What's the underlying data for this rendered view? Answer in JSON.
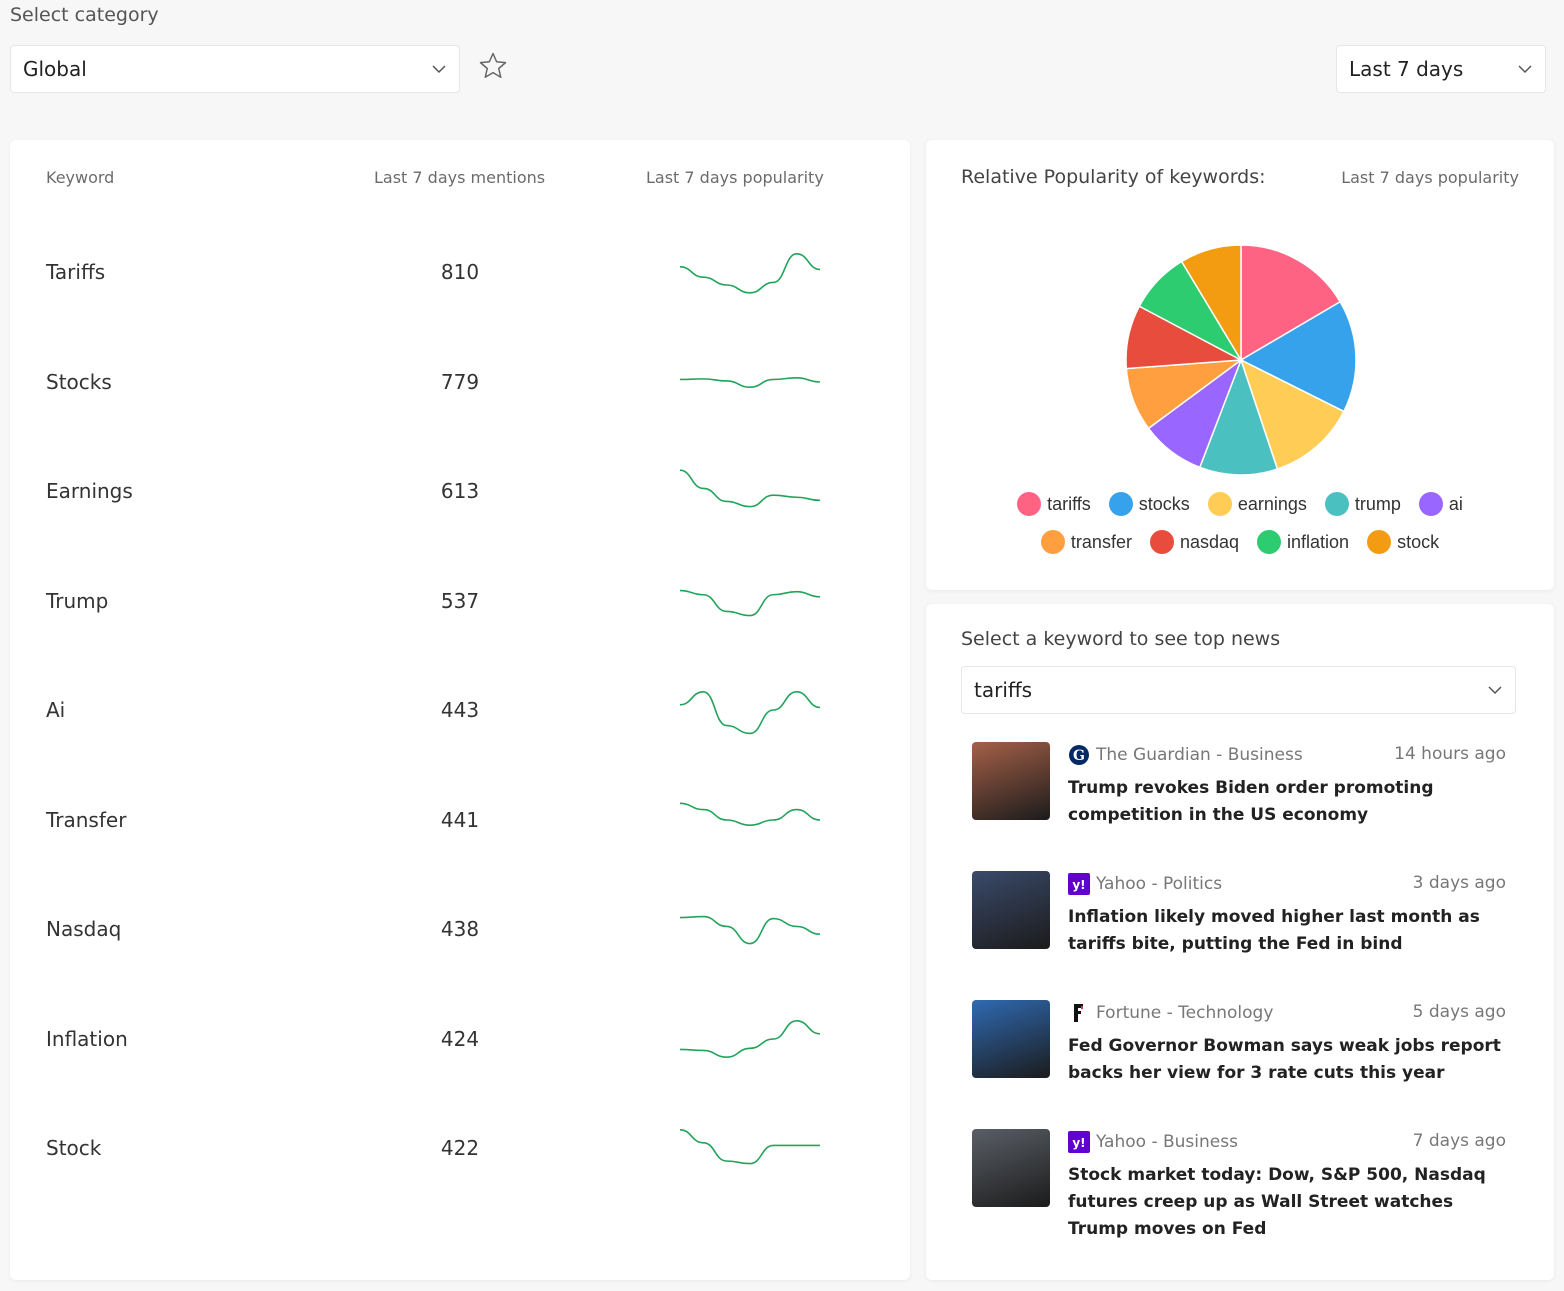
{
  "filters": {
    "category_label": "Select category",
    "category_value": "Global",
    "period_value": "Last 7 days"
  },
  "table": {
    "headers": {
      "keyword": "Keyword",
      "mentions": "Last 7 days mentions",
      "popularity": "Last 7 days popularity"
    },
    "rows": [
      {
        "keyword": "Tariffs",
        "mentions": "810",
        "trend": [
          0.6,
          0.4,
          0.25,
          0.1,
          0.3,
          0.85,
          0.55
        ]
      },
      {
        "keyword": "Stocks",
        "mentions": "779",
        "trend": [
          0.55,
          0.56,
          0.52,
          0.4,
          0.55,
          0.58,
          0.5
        ]
      },
      {
        "keyword": "Earnings",
        "mentions": "613",
        "trend": [
          0.9,
          0.55,
          0.3,
          0.2,
          0.42,
          0.38,
          0.32
        ]
      },
      {
        "keyword": "Trump",
        "mentions": "537",
        "trend": [
          0.7,
          0.62,
          0.3,
          0.22,
          0.62,
          0.68,
          0.58
        ]
      },
      {
        "keyword": "Ai",
        "mentions": "443",
        "trend": [
          0.6,
          0.85,
          0.2,
          0.05,
          0.5,
          0.85,
          0.55
        ]
      },
      {
        "keyword": "Transfer",
        "mentions": "441",
        "trend": [
          0.82,
          0.7,
          0.5,
          0.4,
          0.5,
          0.7,
          0.5
        ]
      },
      {
        "keyword": "Nasdaq",
        "mentions": "438",
        "trend": [
          0.72,
          0.74,
          0.55,
          0.22,
          0.7,
          0.55,
          0.4
        ]
      },
      {
        "keyword": "Inflation",
        "mentions": "424",
        "trend": [
          0.3,
          0.28,
          0.15,
          0.32,
          0.5,
          0.85,
          0.6
        ]
      },
      {
        "keyword": "Stock",
        "mentions": "422",
        "trend": [
          0.85,
          0.6,
          0.25,
          0.2,
          0.55,
          0.55,
          0.55
        ]
      }
    ]
  },
  "pie": {
    "title": "Relative Popularity of keywords:",
    "subtitle": "Last 7 days popularity"
  },
  "chart_data": {
    "type": "pie",
    "title": "Relative Popularity of keywords:",
    "categories": [
      "tariffs",
      "stocks",
      "earnings",
      "trump",
      "ai",
      "transfer",
      "nasdaq",
      "inflation",
      "stock"
    ],
    "values": [
      16.3,
      15.6,
      12.3,
      10.8,
      8.9,
      8.8,
      8.8,
      8.5,
      8.5
    ],
    "colors": [
      "#ff6384",
      "#36a2eb",
      "#ffcd56",
      "#4bc0c0",
      "#9966ff",
      "#ff9f40",
      "#e74c3c",
      "#2ecc71",
      "#f39c12"
    ]
  },
  "news": {
    "label": "Select a keyword to see top news",
    "selected_keyword": "tariffs",
    "items": [
      {
        "source": "The Guardian - Business",
        "time": "14 hours ago",
        "headline": "Trump revokes Biden order promoting competition in the US economy",
        "icon": "guardian-icon",
        "thumb_color": "#a56048"
      },
      {
        "source": "Yahoo - Politics",
        "time": "3 days ago",
        "headline": "Inflation likely moved higher last month as tariffs bite, putting the Fed in bind",
        "icon": "yahoo-icon",
        "thumb_color": "#3a4a6a"
      },
      {
        "source": "Fortune - Technology",
        "time": "5 days ago",
        "headline": "Fed Governor Bowman says weak jobs report backs her view for 3 rate cuts this year",
        "icon": "fortune-icon",
        "thumb_color": "#2f6ab2"
      },
      {
        "source": "Yahoo - Business",
        "time": "7 days ago",
        "headline": "Stock market today: Dow, S&P 500, Nasdaq futures creep up as Wall Street watches Trump moves on Fed",
        "icon": "yahoo-icon",
        "thumb_color": "#5a5f66"
      }
    ]
  },
  "colors": {
    "spark": "#22a35a"
  }
}
